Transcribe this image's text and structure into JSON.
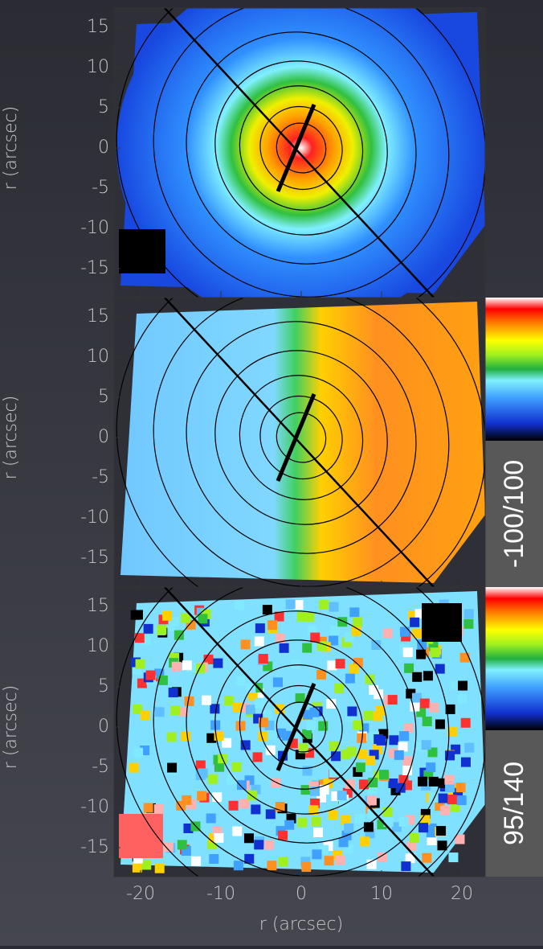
{
  "x_axis_label": "r (arcsec)",
  "y_axis_label": "r (arcsec)",
  "xticks": [
    -20,
    -10,
    0,
    10,
    20
  ],
  "yticks": [
    15,
    10,
    5,
    0,
    -5,
    -10,
    -15
  ],
  "colorbars": [
    {
      "label": "-100/100"
    },
    {
      "label": "95/140"
    }
  ]
}
